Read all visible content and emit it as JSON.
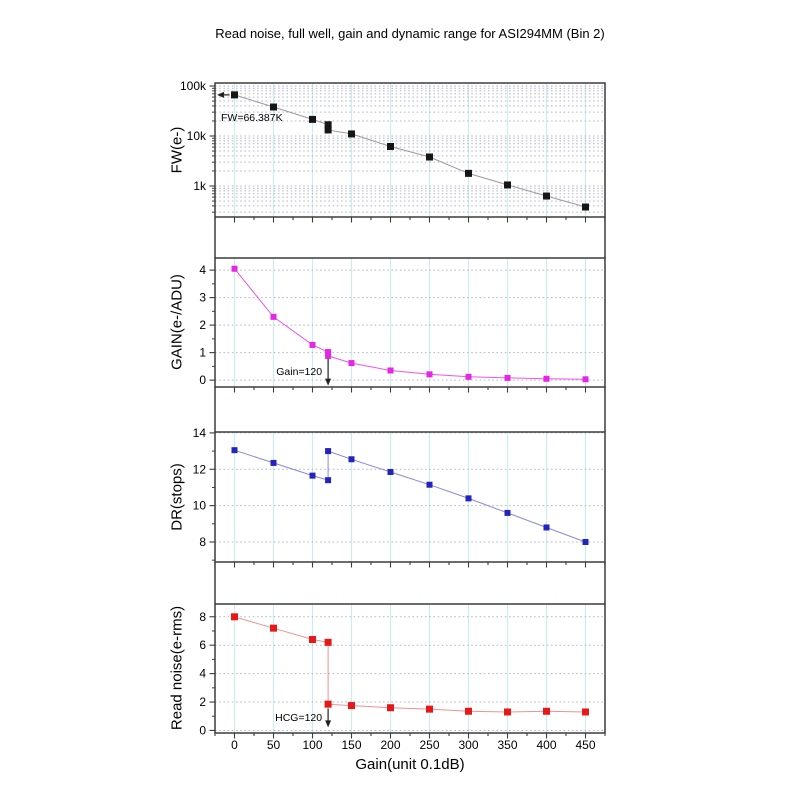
{
  "chart_data": {
    "type": "line",
    "title": "Read noise, full well, gain and dynamic range for ASI294MM (Bin 2)",
    "xlabel": "Gain(unit 0.1dB)",
    "xlim": [
      -25,
      475
    ],
    "x_ticks_major": [
      0,
      50,
      100,
      150,
      200,
      250,
      300,
      350,
      400,
      450
    ],
    "x_minor_step": 25,
    "x": [
      0,
      50,
      100,
      120,
      120,
      150,
      200,
      250,
      300,
      350,
      400,
      450
    ],
    "grid": {
      "horizontal": "dotted",
      "vertical": "solid",
      "h_color": "#b4b4d2",
      "v_color": "#cdeded"
    },
    "panels": [
      {
        "name": "full-well",
        "ylabel": "FW(e-)",
        "yscale": "log",
        "ylim": [
          240,
          114800
        ],
        "yticks": [
          [
            1000,
            "1k"
          ],
          [
            10000,
            "10k"
          ],
          [
            100000,
            "100k"
          ]
        ],
        "values": [
          66387,
          38000,
          21500,
          16800,
          13200,
          11000,
          6170,
          3800,
          1790,
          1050,
          630,
          380
        ],
        "marker_color": "#161616",
        "line_color": "#9a9a9a",
        "annotation": {
          "text": "FW=66.387K",
          "style": "arrow-left-to-axis"
        }
      },
      {
        "name": "gain",
        "ylabel": "GAIN(e-/ADU)",
        "yscale": "linear",
        "ylim": [
          -0.25,
          4.44
        ],
        "yticks": [
          [
            0,
            "0"
          ],
          [
            1,
            "1"
          ],
          [
            2,
            "2"
          ],
          [
            3,
            "3"
          ],
          [
            4,
            "4"
          ]
        ],
        "y_minor_step": 0.5,
        "values": [
          4.05,
          2.3,
          1.28,
          1.02,
          0.88,
          0.62,
          0.35,
          0.21,
          0.12,
          0.08,
          0.05,
          0.03
        ],
        "marker_color": "#e626e6",
        "line_color": "#ee55ee",
        "annotation": {
          "text": "Gain=120",
          "style": "arrow-down",
          "x": 120,
          "arrow_from": 0.78,
          "arrow_to": -0.2
        }
      },
      {
        "name": "dynamic-range",
        "ylabel": "DR(stops)",
        "yscale": "linear",
        "ylim": [
          6.9,
          14.05
        ],
        "yticks": [
          [
            8,
            "8"
          ],
          [
            10,
            "10"
          ],
          [
            12,
            "12"
          ],
          [
            14,
            "14"
          ]
        ],
        "y_minor_step": 1,
        "values": [
          13.05,
          12.35,
          11.65,
          11.4,
          13.0,
          12.55,
          11.85,
          11.15,
          10.4,
          9.6,
          8.8,
          8.0
        ],
        "marker_color": "#2323bd",
        "line_color": "#8888dd",
        "annotation": null
      },
      {
        "name": "read-noise",
        "ylabel": "Read noise(e-rms)",
        "yscale": "linear",
        "ylim": [
          -0.18,
          8.9
        ],
        "yticks": [
          [
            0,
            "0"
          ],
          [
            2,
            "2"
          ],
          [
            4,
            "4"
          ],
          [
            6,
            "6"
          ],
          [
            8,
            "8"
          ]
        ],
        "y_minor_step": 1,
        "values": [
          8.0,
          7.2,
          6.4,
          6.2,
          1.85,
          1.75,
          1.6,
          1.5,
          1.35,
          1.3,
          1.35,
          1.3
        ],
        "marker_color": "#e81818",
        "line_color": "#f09090",
        "annotation": {
          "text": "HCG=120",
          "style": "arrow-down",
          "x": 120,
          "arrow_from": 1.55,
          "arrow_to": 0.22
        }
      }
    ]
  }
}
